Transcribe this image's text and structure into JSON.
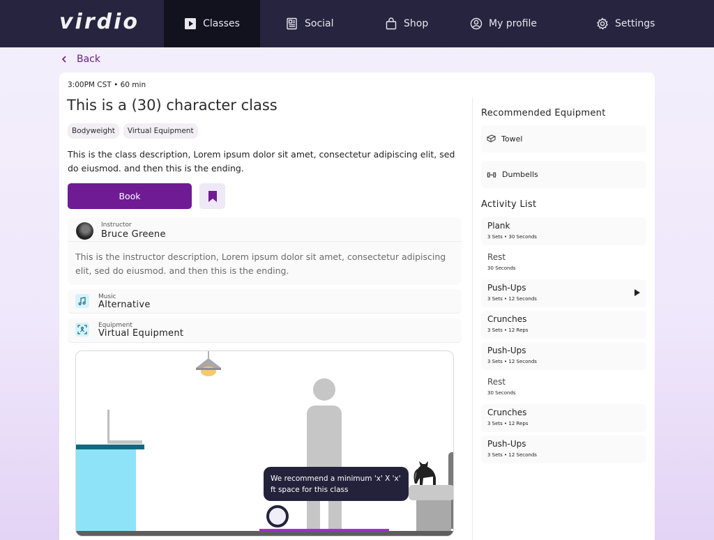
{
  "nav": {
    "logo": "virdio",
    "items": [
      {
        "label": "Classes",
        "icon": "play-square-icon",
        "active": true
      },
      {
        "label": "Social",
        "icon": "newspaper-icon",
        "active": false
      },
      {
        "label": "Shop",
        "icon": "shopping-bag-icon",
        "active": false
      },
      {
        "label": "My profile",
        "icon": "user-circle-icon",
        "active": false
      },
      {
        "label": "Settings",
        "icon": "gear-icon",
        "active": false
      }
    ]
  },
  "back_label": "Back",
  "class": {
    "time": "3:00PM CST",
    "duration": "60 min",
    "title": "This is a (30) character class",
    "tags": [
      "Bodyweight",
      "Virtual Equipment"
    ],
    "description": "This is the class description, Lorem ipsum dolor sit amet, consectetur adipiscing elit, sed do eiusmod. and then this is the ending.",
    "book_label": "Book"
  },
  "instructor": {
    "label": "Instructor",
    "name": "Bruce Greene",
    "description": "This is the instructor description, Lorem ipsum dolor sit amet, consectetur adipiscing elit, sed do eiusmod. and then this is the ending."
  },
  "music": {
    "label": "Music",
    "value": "Alternative"
  },
  "equipment": {
    "label": "Equipment",
    "value": "Virtual Equipment"
  },
  "illustration": {
    "tooltip": "We recommend a minimum 'x' X 'x' ft space for this class"
  },
  "sidebar": {
    "equipment_heading": "Recommended Equipment",
    "equipment": [
      {
        "label": "Towel",
        "icon": "towel-icon"
      },
      {
        "label": "Dumbells",
        "icon": "dumbbell-icon"
      }
    ],
    "activity_heading": "Activity List",
    "activities": [
      {
        "name": "Plank",
        "detail": "3 Sets • 30 Seconds"
      },
      {
        "name": "Rest",
        "detail": "30 Seconds"
      },
      {
        "name": "Push-Ups",
        "detail": "3 Sets • 12 Seconds"
      },
      {
        "name": "Crunches",
        "detail": "3 Sets • 12 Reps"
      },
      {
        "name": "Push-Ups",
        "detail": "3 Sets • 12 Seconds"
      },
      {
        "name": "Rest",
        "detail": "30 Seconds"
      },
      {
        "name": "Crunches",
        "detail": "3 Sets • 12 Reps"
      },
      {
        "name": "Push-Ups",
        "detail": "3 Sets • 12 Seconds"
      }
    ]
  },
  "colors": {
    "nav_bg": "#27243f",
    "accent": "#6f1b93",
    "tooltip_bg": "#24223b"
  }
}
